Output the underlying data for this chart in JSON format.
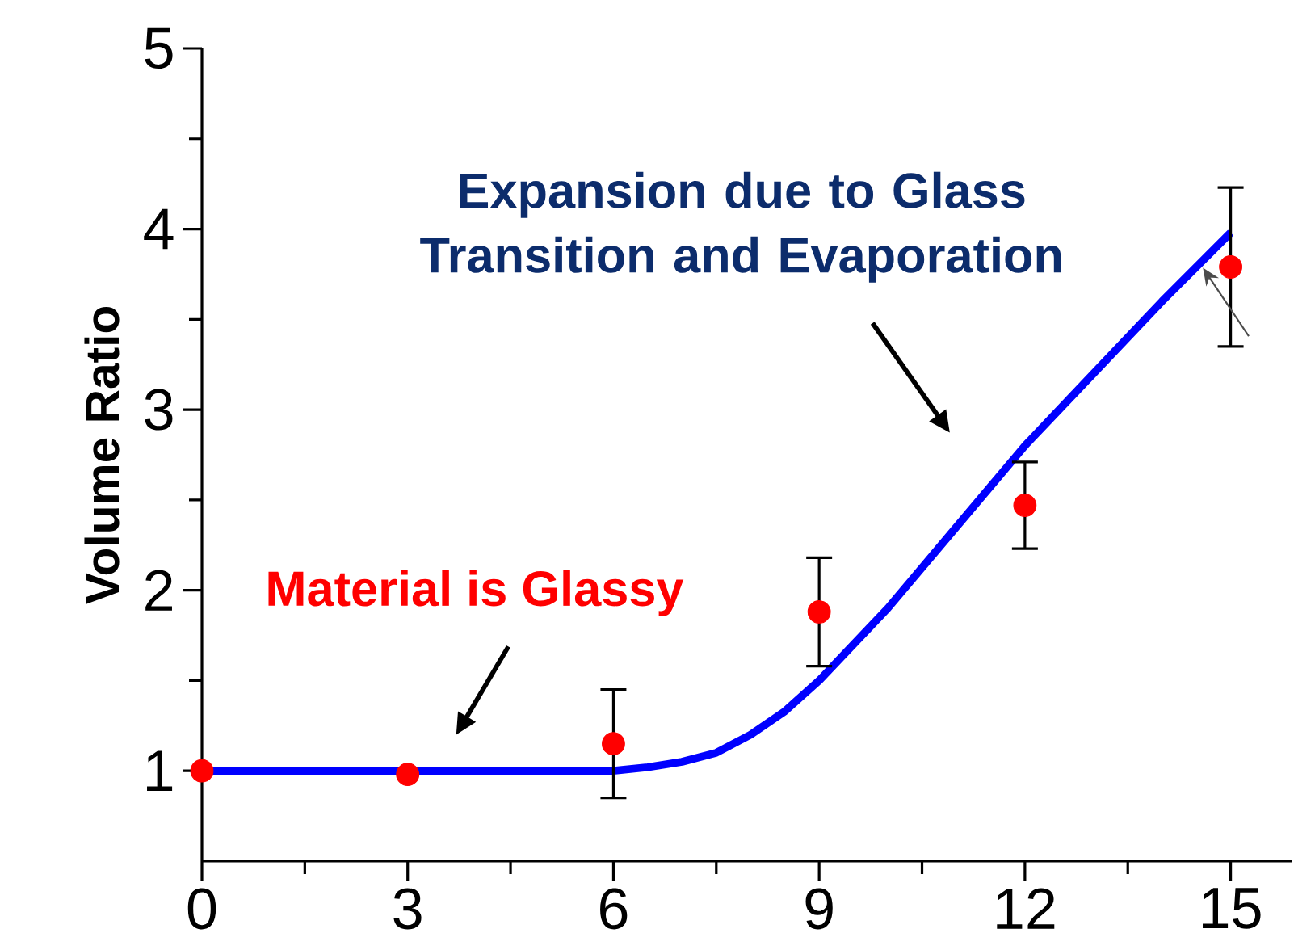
{
  "chart_data": {
    "type": "line",
    "ylabel": "Volume Ratio",
    "xlim": [
      0,
      15.9
    ],
    "ylim": [
      0.5,
      5
    ],
    "xticks": [
      0,
      3,
      6,
      9,
      12,
      15
    ],
    "yticks": [
      1,
      2,
      3,
      4,
      5
    ],
    "grid": false,
    "series": [
      {
        "color": "#0000ff",
        "marker": "none",
        "line_style": "solid",
        "x": [
          0,
          6,
          6.5,
          7,
          7.5,
          8,
          8.5,
          9,
          10,
          11,
          12,
          13,
          14,
          15
        ],
        "values": [
          1.0,
          1.0,
          1.02,
          1.05,
          1.1,
          1.2,
          1.33,
          1.5,
          1.9,
          2.35,
          2.8,
          3.2,
          3.6,
          3.98
        ]
      },
      {
        "type": "scatter",
        "color": "#ff0000",
        "marker": "circle",
        "x": [
          0,
          3,
          6,
          9,
          12,
          15
        ],
        "values": [
          1.0,
          0.98,
          1.15,
          1.88,
          2.47,
          3.79
        ],
        "errors": [
          null,
          null,
          0.3,
          0.3,
          0.24,
          0.44
        ]
      }
    ],
    "annotations": [
      "Material is Glassy",
      "Expansion due to Glass Transition and Evaporation"
    ]
  }
}
